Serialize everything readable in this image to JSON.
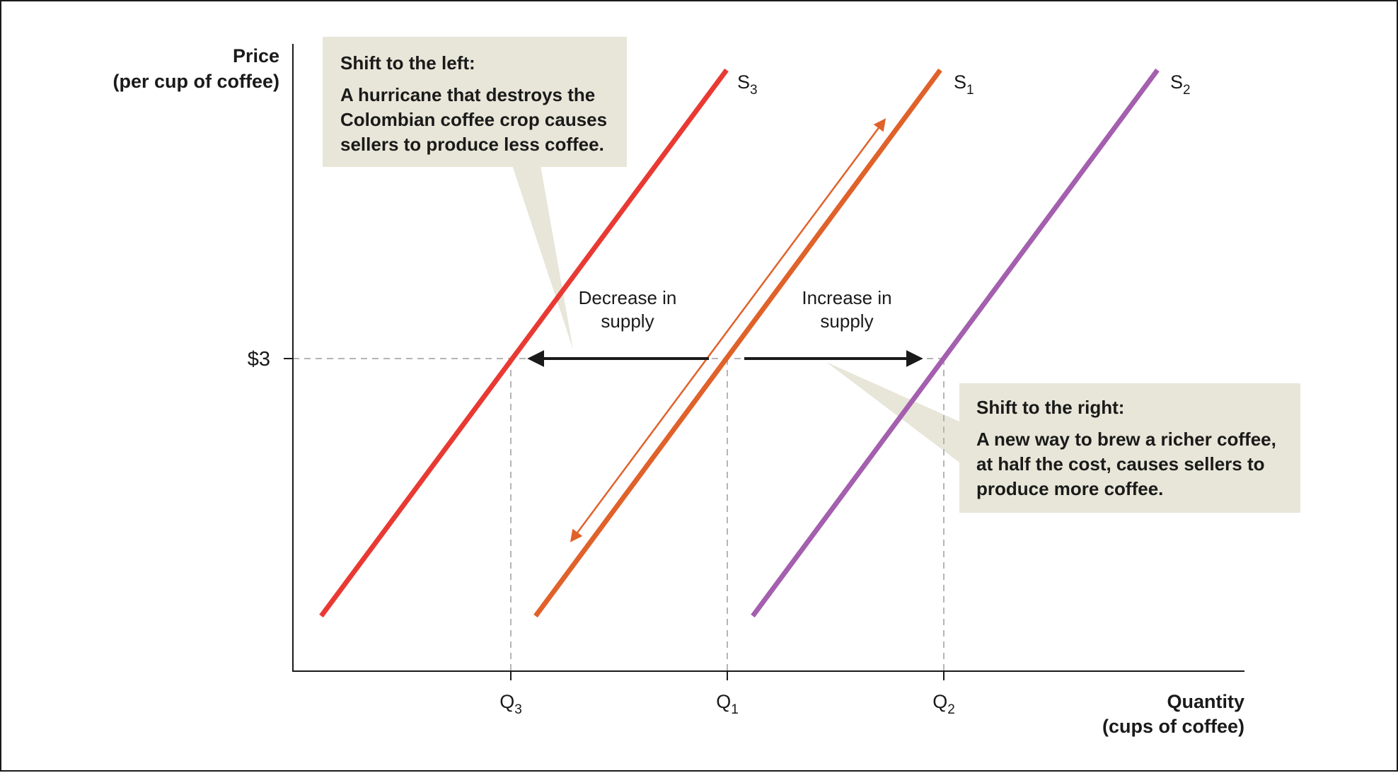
{
  "chart_data": {
    "type": "line",
    "title": "",
    "xlabel_line1": "Quantity",
    "xlabel_line2": "(cups of coffee)",
    "ylabel_line1": "Price",
    "ylabel_line2": "(per cup of coffee)",
    "y_tick": {
      "label": "$3",
      "value": 3
    },
    "x_ticks": [
      {
        "main": "Q",
        "sub": "3"
      },
      {
        "main": "Q",
        "sub": "1"
      },
      {
        "main": "Q",
        "sub": "2"
      }
    ],
    "series": [
      {
        "name": "S",
        "sub": "3",
        "color": "#e83a33"
      },
      {
        "name": "S",
        "sub": "1",
        "color": "#e0622a"
      },
      {
        "name": "S",
        "sub": "2",
        "color": "#a45fae"
      }
    ],
    "shift_arrows": [
      {
        "line1": "Decrease in",
        "line2": "supply"
      },
      {
        "line1": "Increase in",
        "line2": "supply"
      }
    ],
    "movement_arrow_color": "#e0622a",
    "grid": false
  },
  "callouts": {
    "left": {
      "heading": "Shift to the left:",
      "lines": [
        "A hurricane that destroys the",
        "Colombian coffee crop causes",
        "sellers to produce less coffee."
      ]
    },
    "right": {
      "heading": "Shift to the right:",
      "lines": [
        "A new way to brew a richer coffee,",
        "at half the cost, causes sellers to",
        "produce more coffee."
      ]
    },
    "fill_color": "#e7e6d8"
  }
}
